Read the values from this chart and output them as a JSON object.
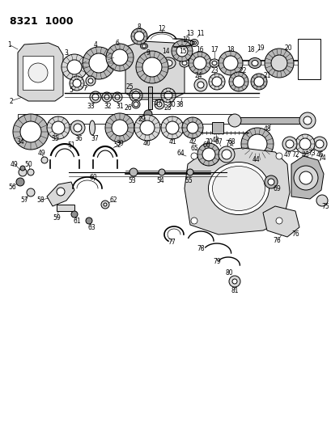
{
  "title": "8321  1000",
  "bg_color": "#ffffff",
  "fig_width": 4.1,
  "fig_height": 5.33,
  "dpi": 100,
  "title_fontsize": 9,
  "label_fontsize": 5.5
}
